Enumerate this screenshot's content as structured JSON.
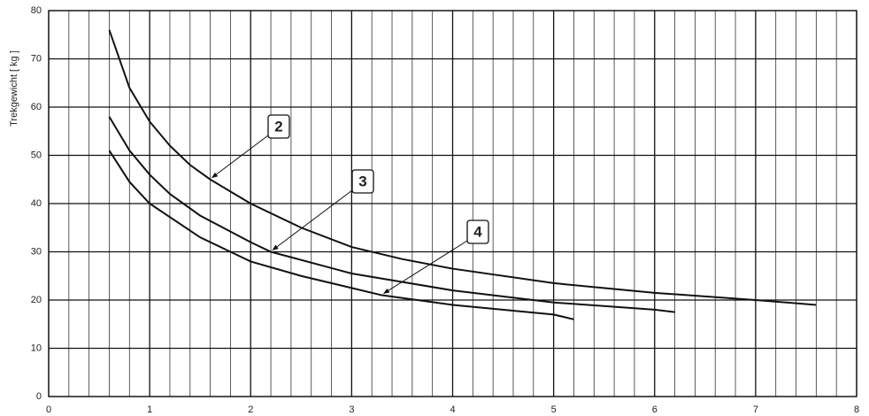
{
  "chart_data": {
    "type": "line",
    "y_label": "Trekgewicht [ kg ]",
    "xlim": [
      0,
      8
    ],
    "xticks": [
      0,
      1,
      2,
      3,
      4,
      5,
      6,
      7,
      8
    ],
    "xgrid": [
      0.2,
      0.4,
      0.6,
      0.8,
      1.2,
      1.4,
      1.6,
      1.8,
      2.2,
      2.4,
      2.6,
      2.8,
      3.2,
      3.4,
      3.6,
      3.8,
      4.2,
      4.4,
      4.6,
      4.8,
      5.2,
      5.4,
      5.6,
      5.8,
      6.2,
      6.4,
      6.6,
      6.8,
      7.2,
      7.4,
      7.6,
      7.8
    ],
    "ylim": [
      0,
      80
    ],
    "yticks": [
      0,
      10,
      20,
      30,
      40,
      50,
      60,
      70,
      80
    ],
    "grid": true,
    "series": [
      {
        "name": "2",
        "color": "#111111",
        "x": [
          0.6,
          0.8,
          1,
          1.2,
          1.4,
          1.6,
          2,
          2.5,
          3,
          3.5,
          4,
          5,
          6,
          7,
          7.6
        ],
        "values": [
          76,
          64,
          57,
          52,
          48,
          45,
          40,
          35,
          31,
          28.5,
          26.5,
          23.5,
          21.5,
          20,
          19
        ]
      },
      {
        "name": "3",
        "color": "#111111",
        "x": [
          0.6,
          0.8,
          1,
          1.2,
          1.5,
          2,
          2.2,
          3,
          4,
          5,
          6,
          6.2
        ],
        "values": [
          58,
          51,
          46,
          42,
          37.5,
          32,
          30,
          25.5,
          22,
          19.5,
          18,
          17.5
        ]
      },
      {
        "name": "4",
        "color": "#111111",
        "x": [
          0.6,
          0.8,
          1,
          1.5,
          2,
          2.5,
          3,
          3.3,
          4,
          5,
          5.2
        ],
        "values": [
          51,
          44.5,
          40,
          33,
          28,
          25,
          22.5,
          21,
          19,
          17,
          16
        ]
      }
    ]
  }
}
